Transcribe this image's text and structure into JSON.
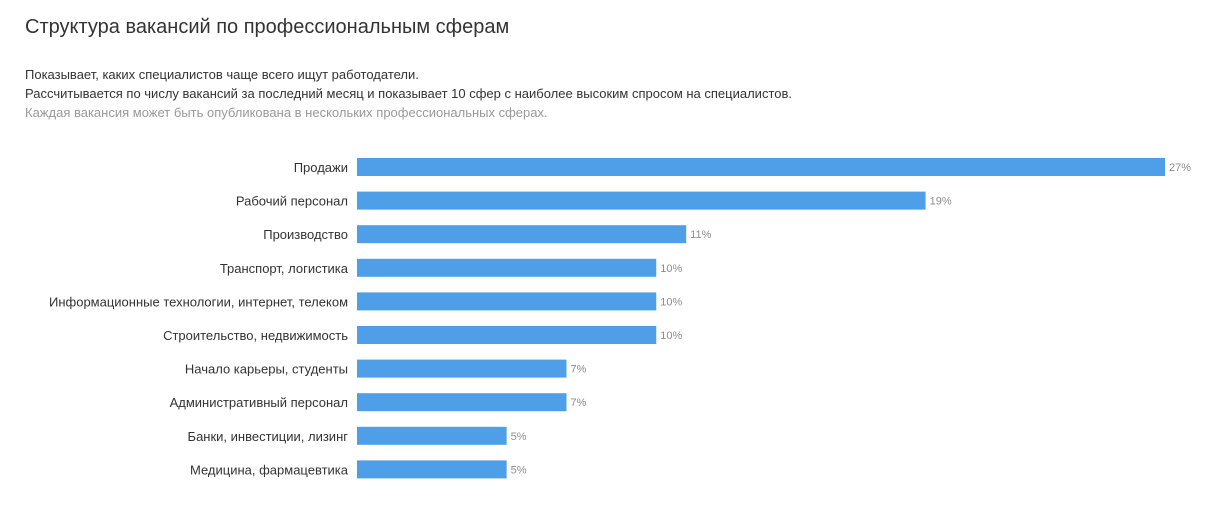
{
  "header": {
    "title": "Структура вакансий по профессиональным сферам",
    "description_line1": "Показывает, каких специалистов чаще всего ищут работодатели.",
    "description_line2": "Рассчитывается по числу вакансий за последний месяц и показывает 10 сфер с наиболее высоким спросом на специалистов.",
    "note": "Каждая вакансия может быть опубликована в нескольких профессиональных сферах."
  },
  "colors": {
    "bar": "#4f9ee8",
    "value_label": "#8c8c8c",
    "category_label": "#333333"
  },
  "chart_data": {
    "type": "bar",
    "orientation": "horizontal",
    "categories": [
      "Продажи",
      "Рабочий персонал",
      "Производство",
      "Транспорт, логистика",
      "Информационные технологии, интернет, телеком",
      "Строительство, недвижимость",
      "Начало карьеры, студенты",
      "Административный персонал",
      "Банки, инвестиции, лизинг",
      "Медицина, фармацевтика"
    ],
    "values": [
      27,
      19,
      11,
      10,
      10,
      10,
      7,
      7,
      5,
      5
    ],
    "value_labels": [
      "27%",
      "19%",
      "11%",
      "10%",
      "10%",
      "10%",
      "7%",
      "7%",
      "5%",
      "5%"
    ],
    "unit": "%",
    "title": "",
    "xlabel": "",
    "ylabel": "",
    "grid": false,
    "legend": "none"
  }
}
